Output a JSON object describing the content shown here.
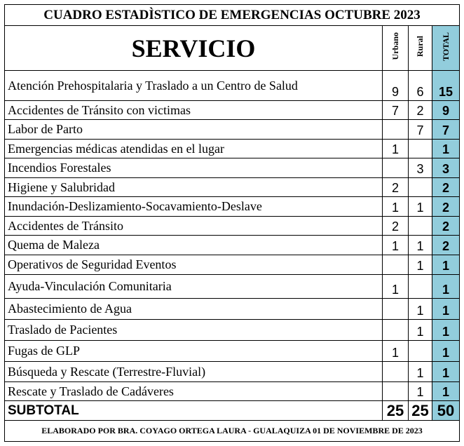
{
  "title": "CUADRO ESTADÌSTICO DE EMERGENCIAS OCTUBRE 2023",
  "header": {
    "servicio": "SERVICIO",
    "urbano": "Urbano",
    "rural": "Rural",
    "total": "TOTAL"
  },
  "colors": {
    "total_column": "#92cddc"
  },
  "rows": [
    {
      "label": "Atención Prehospitalaria y  Traslado a un Centro de Salud",
      "urbano": "9",
      "rural": "6",
      "total": "15"
    },
    {
      "label": "Accidentes de Tránsito con victimas",
      "urbano": "7",
      "rural": "2",
      "total": "9"
    },
    {
      "label": "Labor de Parto",
      "urbano": "",
      "rural": "7",
      "total": "7"
    },
    {
      "label": "Emergencias médicas atendidas en el lugar",
      "urbano": "1",
      "rural": "",
      "total": "1"
    },
    {
      "label": "Incendios Forestales",
      "urbano": "",
      "rural": "3",
      "total": "3"
    },
    {
      "label": "Higiene y Salubridad",
      "urbano": "2",
      "rural": "",
      "total": "2"
    },
    {
      "label": "Inundación-Deslizamiento-Socavamiento-Deslave",
      "urbano": "1",
      "rural": "1",
      "total": "2"
    },
    {
      "label": "Accidentes de Tránsito",
      "urbano": "2",
      "rural": "",
      "total": "2"
    },
    {
      "label": "Quema de Maleza",
      "urbano": "1",
      "rural": "1",
      "total": "2"
    },
    {
      "label": "Operativos de Seguridad Eventos",
      "urbano": "",
      "rural": "1",
      "total": "1"
    },
    {
      "label": "Ayuda-Vinculación Comunitaria",
      "urbano": "1",
      "rural": "",
      "total": "1"
    },
    {
      "label": "Abastecimiento de Agua",
      "urbano": "",
      "rural": "1",
      "total": "1"
    },
    {
      "label": "Traslado de Pacientes",
      "urbano": "",
      "rural": "1",
      "total": "1"
    },
    {
      "label": "Fugas de GLP",
      "urbano": "1",
      "rural": "",
      "total": "1"
    },
    {
      "label": "Búsqueda y Rescate (Terrestre-Fluvial)",
      "urbano": "",
      "rural": "1",
      "total": "1"
    },
    {
      "label": "Rescate y Traslado de Cadáveres",
      "urbano": "",
      "rural": "1",
      "total": "1"
    }
  ],
  "subtotal": {
    "label": "SUBTOTAL",
    "urbano": "25",
    "rural": "25",
    "total": "50"
  },
  "footer": "ELABORADO POR BRA. COYAGO ORTEGA LAURA  - GUALAQUIZA  01 DE NOVIEMBRE DE 2023"
}
